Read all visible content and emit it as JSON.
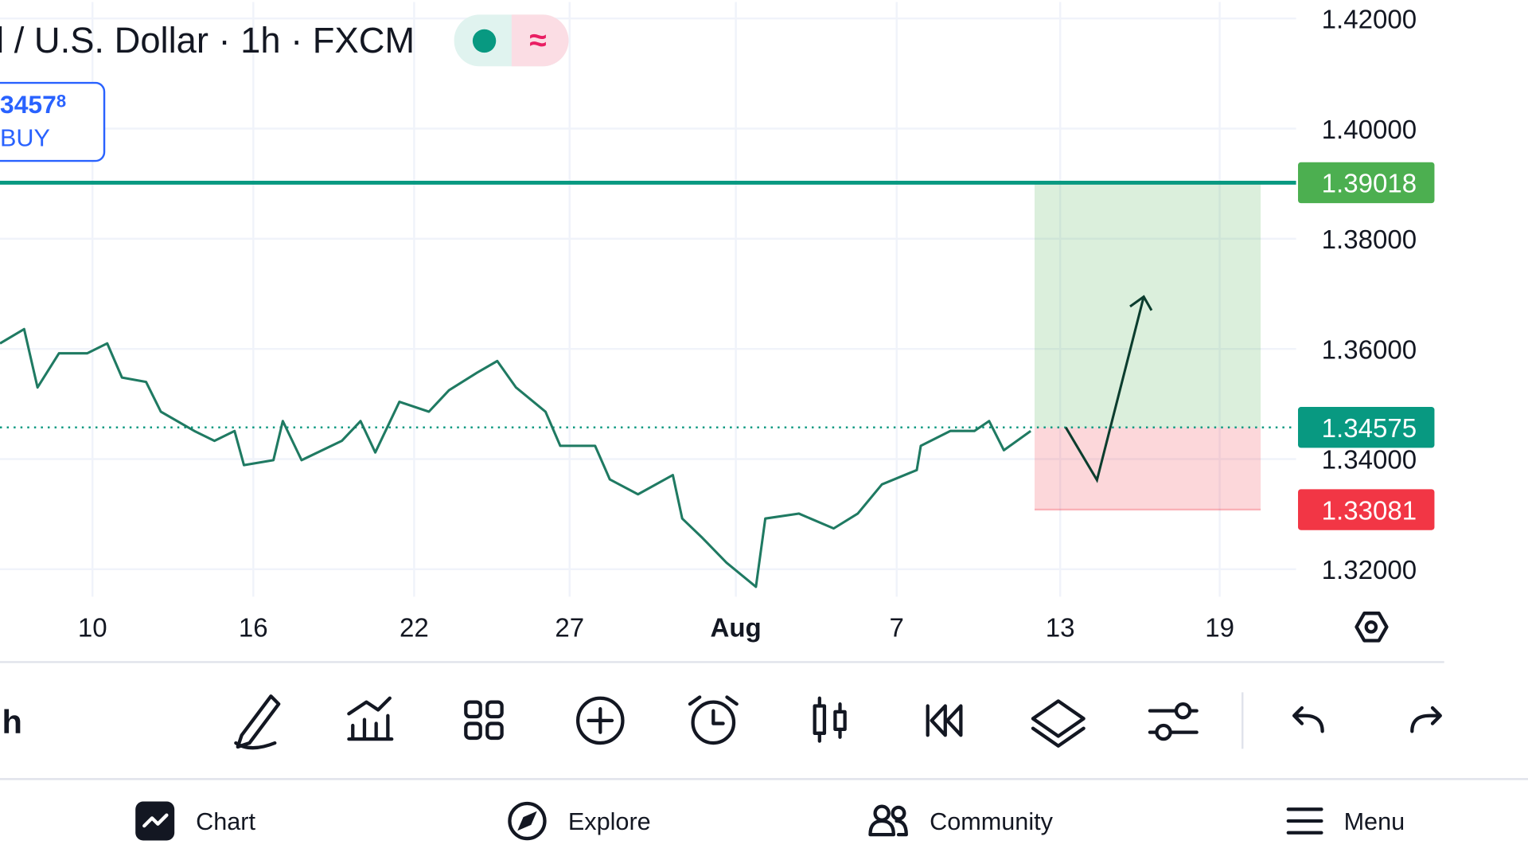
{
  "header": {
    "symbol": "l / U.S. Dollar · 1h · FXCM",
    "price_main": "3457",
    "price_small": "8",
    "side": "BUY"
  },
  "toolbar": {
    "interval": "h"
  },
  "nav": [
    "Chart",
    "Explore",
    "Community",
    "Menu"
  ],
  "chart_data": {
    "type": "line",
    "color": "#1f7a62",
    "x": [
      0,
      18,
      28,
      44,
      65,
      80,
      91,
      109,
      120,
      145,
      160,
      175,
      182,
      204,
      211,
      225,
      255,
      269,
      280,
      298,
      320,
      335,
      356,
      371,
      385,
      407,
      418,
      444,
      455,
      476,
      502,
      509,
      524,
      542,
      564,
      571,
      596,
      622,
      640,
      658,
      684,
      687,
      709,
      727,
      738,
      749,
      769
    ],
    "values": [
      1.361,
      1.3636,
      1.353,
      1.3592,
      1.3592,
      1.361,
      1.3548,
      1.354,
      1.3486,
      1.3451,
      1.3433,
      1.3451,
      1.3389,
      1.3398,
      1.3469,
      1.3398,
      1.3433,
      1.3469,
      1.3412,
      1.3504,
      1.3486,
      1.3525,
      1.3557,
      1.3578,
      1.353,
      1.3486,
      1.3424,
      1.3424,
      1.3363,
      1.3336,
      1.3371,
      1.3292,
      1.3257,
      1.3212,
      1.3168,
      1.3292,
      1.3301,
      1.3274,
      1.3301,
      1.3354,
      1.338,
      1.3424,
      1.3451,
      1.3451,
      1.3469,
      1.3416,
      1.3451
    ],
    "xlim": [
      0,
      967
    ],
    "ylim": [
      1.315,
      1.423
    ],
    "yticks": [
      {
        "value": 1.32,
        "label": "1.32000"
      },
      {
        "value": 1.34,
        "label": "1.34000"
      },
      {
        "value": 1.36,
        "label": "1.36000"
      },
      {
        "value": 1.38,
        "label": "1.38000"
      },
      {
        "value": 1.4,
        "label": "1.40000"
      },
      {
        "value": 1.42,
        "label": "1.42000"
      }
    ],
    "xticks": [
      {
        "value": 69,
        "label": "10"
      },
      {
        "value": 189,
        "label": "16"
      },
      {
        "value": 309,
        "label": "22"
      },
      {
        "value": 425,
        "label": "27"
      },
      {
        "value": 549,
        "label": "Aug"
      },
      {
        "value": 669,
        "label": "7"
      },
      {
        "value": 791,
        "label": "13"
      },
      {
        "value": 910,
        "label": "19"
      }
    ],
    "grid": true,
    "position": {
      "target": 1.39018,
      "entry": 1.34575,
      "stop": 1.33081,
      "target_color": "#4caf50",
      "entry_color": "#089981",
      "stop_color": "#f23645"
    }
  }
}
